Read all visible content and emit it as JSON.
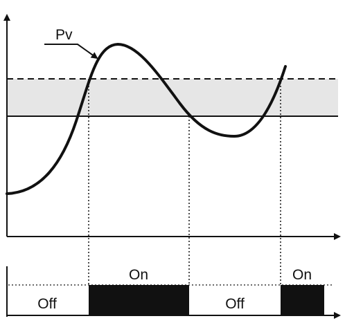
{
  "diagram": {
    "curve_label": "Pv",
    "states": [
      {
        "label": "Off",
        "active": false
      },
      {
        "label": "On",
        "active": true
      },
      {
        "label": "Off",
        "active": false
      },
      {
        "label": "On",
        "active": true
      }
    ],
    "colors": {
      "line": "#111111",
      "band": "#e6e6e6",
      "on_fill": "#111111",
      "background": "#ffffff"
    }
  }
}
